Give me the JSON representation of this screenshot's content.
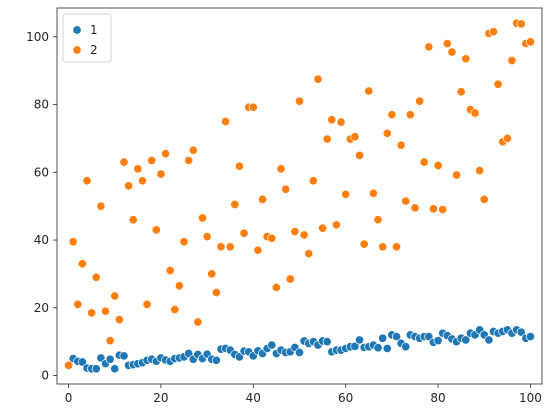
{
  "chart_data": {
    "type": "scatter",
    "title": "",
    "xlabel": "",
    "ylabel": "",
    "xlim": [
      -2.5,
      102.5
    ],
    "ylim": [
      -2.5,
      108.5
    ],
    "xticks": [
      0,
      20,
      40,
      60,
      80,
      100
    ],
    "yticks": [
      0,
      20,
      40,
      60,
      80,
      100
    ],
    "grid": false,
    "legend": {
      "position": "top-left",
      "entries": [
        "1",
        "2"
      ]
    },
    "series": [
      {
        "name": "1",
        "color": "#1f77b4",
        "x": [
          0,
          1,
          2,
          3,
          4,
          5,
          6,
          7,
          8,
          9,
          10,
          11,
          12,
          13,
          14,
          15,
          16,
          17,
          18,
          19,
          20,
          21,
          22,
          23,
          24,
          25,
          26,
          27,
          28,
          29,
          30,
          31,
          32,
          33,
          34,
          35,
          36,
          37,
          38,
          39,
          40,
          41,
          42,
          43,
          44,
          45,
          46,
          47,
          48,
          49,
          50,
          51,
          52,
          53,
          54,
          55,
          56,
          57,
          58,
          59,
          60,
          61,
          62,
          63,
          64,
          65,
          66,
          67,
          68,
          69,
          70,
          71,
          72,
          73,
          74,
          75,
          76,
          77,
          78,
          79,
          80,
          81,
          82,
          83,
          84,
          85,
          86,
          87,
          88,
          89,
          90,
          91,
          92,
          93,
          94,
          95,
          96,
          97,
          98,
          99,
          100
        ],
        "y": [
          3.2,
          5.0,
          4.2,
          4.0,
          2.2,
          2.0,
          2.0,
          5.2,
          3.5,
          4.8,
          2.0,
          6.0,
          5.8,
          3.0,
          3.2,
          3.5,
          3.8,
          4.5,
          4.8,
          4.2,
          5.2,
          4.6,
          4.2,
          5.0,
          5.2,
          5.5,
          6.5,
          4.8,
          6.2,
          5.0,
          6.3,
          4.8,
          4.5,
          7.8,
          8.0,
          7.5,
          6.2,
          5.5,
          7.2,
          7.0,
          5.8,
          7.3,
          6.5,
          8.0,
          9.0,
          6.5,
          7.5,
          6.8,
          7.0,
          8.3,
          6.8,
          10.2,
          9.5,
          10.0,
          9.0,
          10.2,
          10.0,
          7.0,
          7.5,
          7.5,
          8.0,
          8.5,
          8.6,
          10.5,
          8.3,
          8.5,
          9.0,
          8.2,
          11.0,
          8.0,
          12.0,
          11.5,
          9.5,
          8.5,
          12.0,
          11.5,
          11.0,
          11.5,
          11.5,
          9.8,
          10.3,
          12.5,
          11.8,
          10.8,
          10.0,
          11.0,
          10.5,
          12.5,
          12.0,
          13.5,
          12.0,
          10.5,
          13.0,
          12.5,
          13.0,
          13.5,
          12.5,
          13.5,
          12.8,
          11.0,
          11.5
        ]
      },
      {
        "name": "2",
        "color": "#ff7f0e",
        "x": [
          0,
          1,
          2,
          3,
          4,
          5,
          6,
          7,
          8,
          9,
          10,
          11,
          12,
          13,
          14,
          15,
          16,
          17,
          18,
          19,
          20,
          21,
          22,
          23,
          24,
          25,
          26,
          27,
          28,
          29,
          30,
          31,
          32,
          33,
          34,
          35,
          36,
          37,
          38,
          39,
          40,
          41,
          42,
          43,
          44,
          45,
          46,
          47,
          48,
          49,
          50,
          51,
          52,
          53,
          54,
          55,
          56,
          57,
          58,
          59,
          60,
          61,
          62,
          63,
          64,
          65,
          66,
          67,
          68,
          69,
          70,
          71,
          72,
          73,
          74,
          75,
          76,
          77,
          78,
          79,
          80,
          81,
          82,
          83,
          84,
          85,
          86,
          87,
          88,
          89,
          90,
          91,
          92,
          93,
          94,
          95,
          96,
          97,
          98,
          99,
          100
        ],
        "y": [
          3.0,
          39.5,
          21.0,
          33.0,
          57.5,
          18.5,
          29.0,
          50.0,
          19.0,
          10.3,
          23.5,
          16.5,
          63.0,
          56.0,
          46.0,
          61.0,
          57.5,
          21.0,
          63.5,
          43.0,
          59.5,
          65.5,
          31.0,
          19.5,
          26.5,
          39.5,
          63.5,
          66.5,
          15.8,
          46.5,
          41.0,
          30.0,
          24.5,
          38.0,
          75.0,
          38.0,
          50.5,
          61.8,
          42.0,
          79.2,
          79.2,
          37.0,
          52.0,
          41.0,
          40.5,
          26.0,
          61.0,
          55.0,
          28.5,
          42.5,
          81.0,
          41.5,
          36.0,
          57.5,
          87.5,
          43.5,
          69.8,
          75.5,
          44.5,
          74.8,
          53.5,
          69.8,
          70.5,
          65.0,
          38.8,
          84.0,
          53.8,
          46.0,
          38.0,
          71.5,
          77.0,
          38.0,
          68.0,
          51.5,
          77.0,
          49.5,
          81.0,
          63.0,
          97.0,
          49.2,
          62.0,
          49.0,
          98.0,
          95.5,
          59.2,
          83.8,
          93.5,
          78.5,
          77.5,
          60.5,
          52.0,
          101.0,
          101.5,
          86.0,
          69.0,
          70.0,
          93.0,
          104.0,
          103.8,
          98.0,
          98.5
        ]
      }
    ]
  }
}
